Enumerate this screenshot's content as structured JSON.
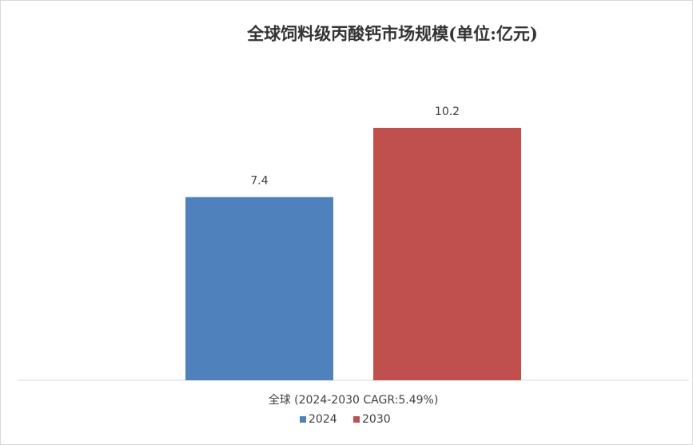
{
  "chart_data": {
    "type": "bar",
    "title": "全球饲料级丙酸钙市场规模(单位:亿元)",
    "categories": [
      "全球 (2024-2030 CAGR:5.49%)"
    ],
    "series": [
      {
        "name": "2024",
        "color": "#4f81bd",
        "values": [
          7.4
        ]
      },
      {
        "name": "2030",
        "color": "#c0504d",
        "values": [
          10.2
        ]
      }
    ],
    "legend": "bottom"
  }
}
